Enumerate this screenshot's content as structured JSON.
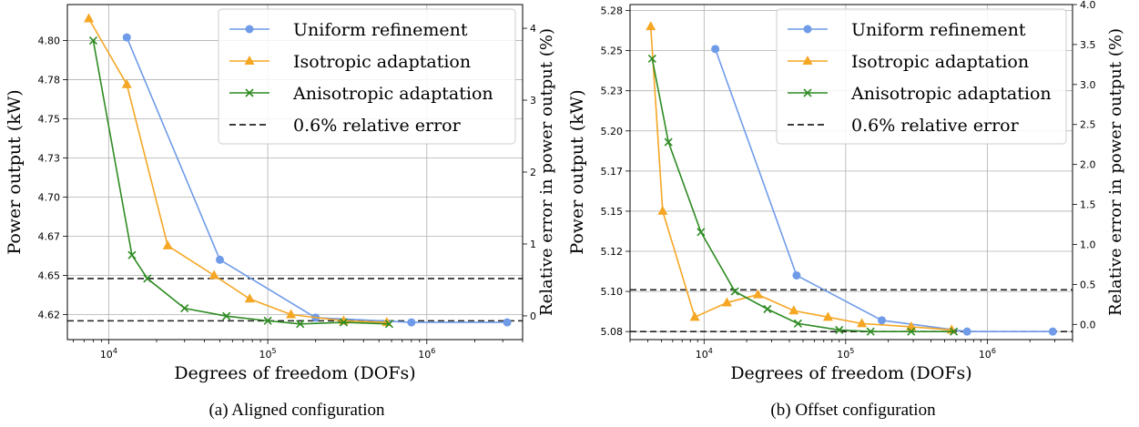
{
  "chart_data": [
    {
      "type": "line",
      "caption": "(a) Aligned configuration",
      "xlabel": "Degrees of freedom (DOFs)",
      "ylabel": "Power output (kW)",
      "y2label": "Relative error in power output (%)",
      "xscale": "log",
      "xlim": [
        5500,
        4000000
      ],
      "ylim": [
        4.604,
        4.818
      ],
      "y2lim": [
        -0.33,
        4.33
      ],
      "xticks": [
        "10^4",
        "10^5",
        "10^6"
      ],
      "yticks": [
        "4.62",
        "4.65",
        "4.67",
        "4.70",
        "4.73",
        "4.75",
        "4.78",
        "4.80"
      ],
      "ytick_values": [
        4.62,
        4.645,
        4.67,
        4.695,
        4.72,
        4.745,
        4.77,
        4.795
      ],
      "y2ticks": [
        "0",
        "1",
        "2",
        "3",
        "4"
      ],
      "y2tick_values": [
        0,
        1,
        2,
        3,
        4
      ],
      "grid": true,
      "legend_position": "top-right",
      "reference_lines": [
        {
          "name": "0.6% relative error",
          "y": 4.643
        },
        {
          "name": "",
          "y": 4.616
        }
      ],
      "series": [
        {
          "name": "Uniform refinement",
          "color": "#6f9be8",
          "marker": "circle",
          "x": [
            13000,
            50000,
            200000,
            800000,
            3200000
          ],
          "y": [
            4.797,
            4.655,
            4.618,
            4.615,
            4.615
          ]
        },
        {
          "name": "Isotropic adaptation",
          "color": "#f5a623",
          "marker": "triangle",
          "x": [
            7500,
            13000,
            23500,
            46000,
            77000,
            140000,
            300000,
            560000
          ],
          "y": [
            4.809,
            4.767,
            4.664,
            4.645,
            4.63,
            4.62,
            4.616,
            4.615
          ]
        },
        {
          "name": "Anisotropic adaptation",
          "color": "#2e8b22",
          "marker": "x",
          "x": [
            8000,
            14000,
            17500,
            30000,
            55000,
            100000,
            160000,
            300000,
            580000
          ],
          "y": [
            4.795,
            4.658,
            4.643,
            4.624,
            4.619,
            4.616,
            4.614,
            4.615,
            4.614
          ]
        }
      ]
    },
    {
      "type": "line",
      "caption": "(b) Offset configuration",
      "xlabel": "Degrees of freedom (DOFs)",
      "ylabel": "Power output (kW)",
      "y2label": "Relative error in power output (%)",
      "xscale": "log",
      "xlim": [
        3000,
        4000000
      ],
      "ylim": [
        5.0705,
        5.2792
      ],
      "y2lim": [
        -0.19,
        4.0
      ],
      "xticks": [
        "10^4",
        "10^5",
        "10^6"
      ],
      "yticks": [
        "5.08",
        "5.10",
        "5.12",
        "5.15",
        "5.17",
        "5.20",
        "5.23",
        "5.25",
        "5.28"
      ],
      "ytick_values": [
        5.0755,
        5.1005,
        5.1255,
        5.1505,
        5.1755,
        5.2005,
        5.2255,
        5.2505,
        5.2755
      ],
      "y2ticks": [
        "0.0",
        "0.5",
        "1.0",
        "1.5",
        "2.0",
        "2.5",
        "3.0",
        "3.5",
        "4.0"
      ],
      "y2tick_values": [
        0,
        0.5,
        1.0,
        1.5,
        2.0,
        2.5,
        3.0,
        3.5,
        4.0
      ],
      "grid": true,
      "legend_position": "top-right",
      "reference_lines": [
        {
          "name": "0.6% relative error",
          "y": 5.1015
        },
        {
          "name": "",
          "y": 5.0755
        }
      ],
      "series": [
        {
          "name": "Uniform refinement",
          "color": "#6f9be8",
          "marker": "circle",
          "x": [
            12000,
            45000,
            180000,
            720000,
            2900000
          ],
          "y": [
            5.2515,
            5.1105,
            5.0825,
            5.0755,
            5.0755
          ]
        },
        {
          "name": "Isotropic adaptation",
          "color": "#f5a623",
          "marker": "triangle",
          "x": [
            4200,
            5100,
            8600,
            14500,
            24000,
            43000,
            75000,
            130000,
            290000,
            560000
          ],
          "y": [
            5.2655,
            5.1505,
            5.0845,
            5.0935,
            5.0985,
            5.0885,
            5.0845,
            5.0805,
            5.0785,
            5.0765
          ]
        },
        {
          "name": "Anisotropic adaptation",
          "color": "#2e8b22",
          "marker": "x",
          "x": [
            4300,
            5600,
            9500,
            16500,
            28000,
            46000,
            90000,
            150000,
            290000,
            580000
          ],
          "y": [
            5.2455,
            5.1935,
            5.1375,
            5.1005,
            5.0895,
            5.0805,
            5.0765,
            5.0755,
            5.0755,
            5.0755
          ]
        }
      ]
    }
  ]
}
